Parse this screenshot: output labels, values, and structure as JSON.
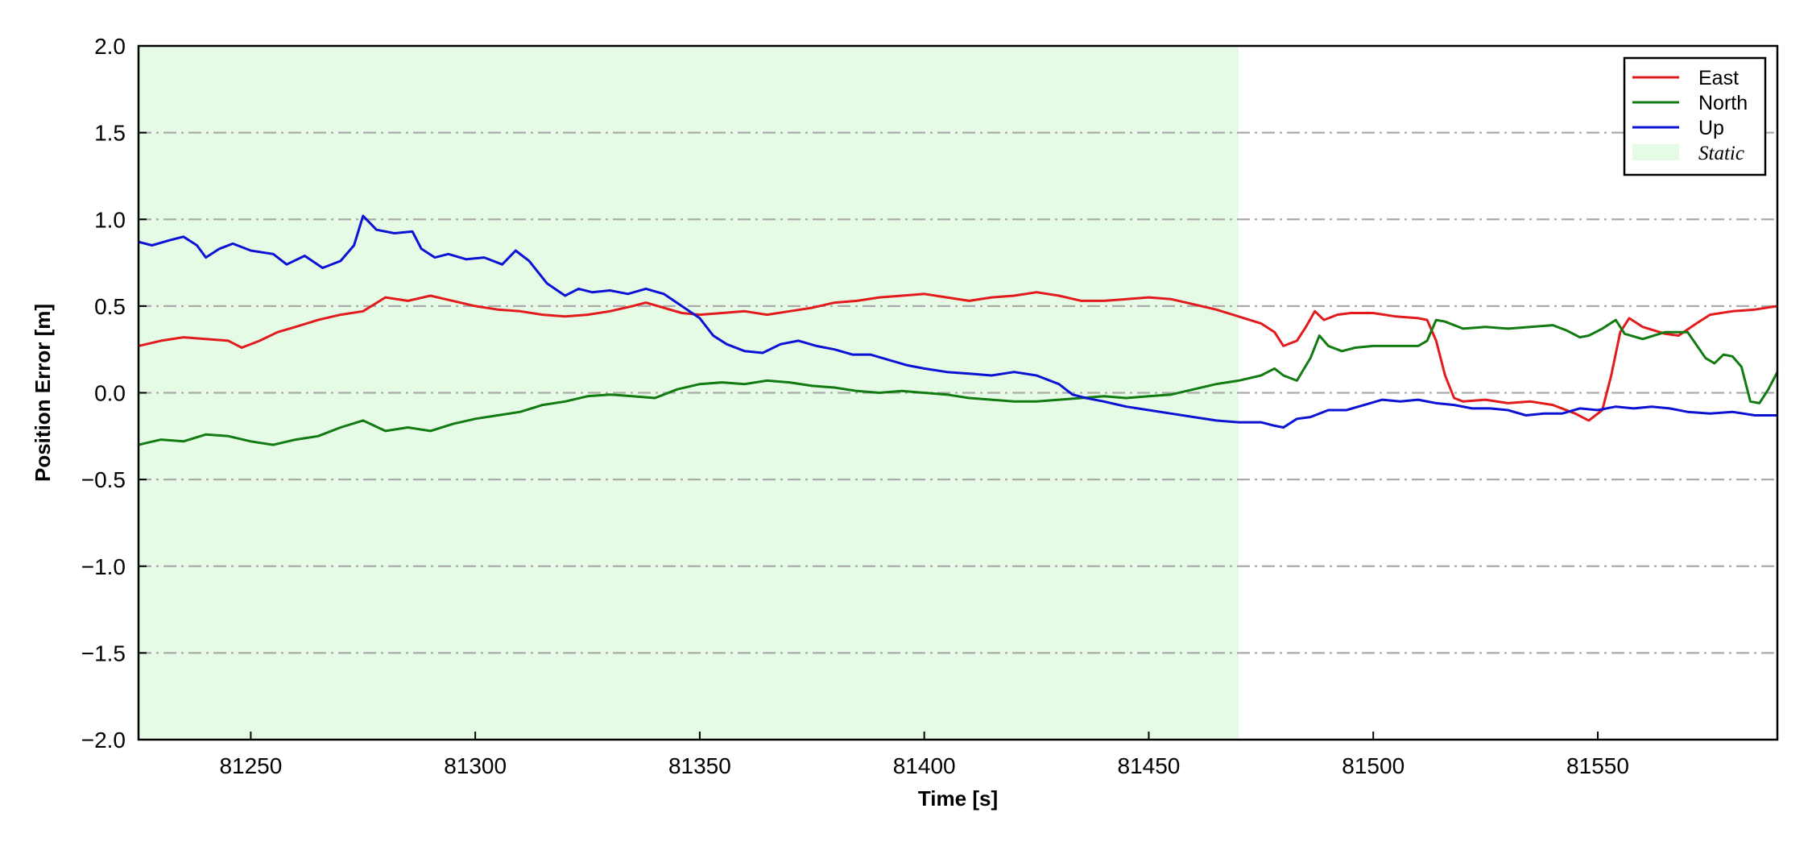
{
  "chart_data": {
    "type": "line",
    "xlabel": "Time [s]",
    "ylabel": "Position Error [m]",
    "xlim": [
      81225,
      81590
    ],
    "ylim": [
      -2.0,
      2.0
    ],
    "xticks": [
      81250,
      81300,
      81350,
      81400,
      81450,
      81500,
      81550
    ],
    "yticks": [
      -2.0,
      -1.5,
      -1.0,
      -0.5,
      0.0,
      0.5,
      1.0,
      1.5,
      2.0
    ],
    "ytick_labels": [
      "−2.0",
      "−1.5",
      "−1.0",
      "−0.5",
      "0.0",
      "0.5",
      "1.0",
      "1.5",
      "2.0"
    ],
    "grid": "horizontal dash-dot",
    "legend_position": "top-right",
    "shaded_region": {
      "label": "Static",
      "x_start": 81225,
      "x_end": 81470,
      "color": "#e6fbe6"
    },
    "series": [
      {
        "name": "East",
        "color": "#e31a1c",
        "points": [
          [
            81225,
            0.27
          ],
          [
            81230,
            0.3
          ],
          [
            81235,
            0.32
          ],
          [
            81240,
            0.31
          ],
          [
            81245,
            0.3
          ],
          [
            81248,
            0.26
          ],
          [
            81252,
            0.3
          ],
          [
            81256,
            0.35
          ],
          [
            81260,
            0.38
          ],
          [
            81265,
            0.42
          ],
          [
            81270,
            0.45
          ],
          [
            81275,
            0.47
          ],
          [
            81280,
            0.55
          ],
          [
            81285,
            0.53
          ],
          [
            81290,
            0.56
          ],
          [
            81295,
            0.53
          ],
          [
            81300,
            0.5
          ],
          [
            81305,
            0.48
          ],
          [
            81310,
            0.47
          ],
          [
            81315,
            0.45
          ],
          [
            81320,
            0.44
          ],
          [
            81325,
            0.45
          ],
          [
            81330,
            0.47
          ],
          [
            81335,
            0.5
          ],
          [
            81338,
            0.52
          ],
          [
            81342,
            0.49
          ],
          [
            81346,
            0.46
          ],
          [
            81350,
            0.45
          ],
          [
            81355,
            0.46
          ],
          [
            81360,
            0.47
          ],
          [
            81365,
            0.45
          ],
          [
            81370,
            0.47
          ],
          [
            81375,
            0.49
          ],
          [
            81380,
            0.52
          ],
          [
            81385,
            0.53
          ],
          [
            81390,
            0.55
          ],
          [
            81395,
            0.56
          ],
          [
            81400,
            0.57
          ],
          [
            81405,
            0.55
          ],
          [
            81410,
            0.53
          ],
          [
            81415,
            0.55
          ],
          [
            81420,
            0.56
          ],
          [
            81425,
            0.58
          ],
          [
            81430,
            0.56
          ],
          [
            81435,
            0.53
          ],
          [
            81440,
            0.53
          ],
          [
            81445,
            0.54
          ],
          [
            81450,
            0.55
          ],
          [
            81455,
            0.54
          ],
          [
            81460,
            0.51
          ],
          [
            81465,
            0.48
          ],
          [
            81470,
            0.44
          ],
          [
            81475,
            0.4
          ],
          [
            81478,
            0.35
          ],
          [
            81480,
            0.27
          ],
          [
            81483,
            0.3
          ],
          [
            81485,
            0.38
          ],
          [
            81487,
            0.47
          ],
          [
            81489,
            0.42
          ],
          [
            81492,
            0.45
          ],
          [
            81495,
            0.46
          ],
          [
            81500,
            0.46
          ],
          [
            81505,
            0.44
          ],
          [
            81510,
            0.43
          ],
          [
            81512,
            0.42
          ],
          [
            81514,
            0.3
          ],
          [
            81516,
            0.1
          ],
          [
            81518,
            -0.03
          ],
          [
            81520,
            -0.05
          ],
          [
            81525,
            -0.04
          ],
          [
            81530,
            -0.06
          ],
          [
            81535,
            -0.05
          ],
          [
            81540,
            -0.07
          ],
          [
            81545,
            -0.12
          ],
          [
            81548,
            -0.16
          ],
          [
            81551,
            -0.1
          ],
          [
            81553,
            0.1
          ],
          [
            81555,
            0.35
          ],
          [
            81557,
            0.43
          ],
          [
            81560,
            0.38
          ],
          [
            81565,
            0.34
          ],
          [
            81568,
            0.33
          ],
          [
            81572,
            0.4
          ],
          [
            81575,
            0.45
          ],
          [
            81580,
            0.47
          ],
          [
            81585,
            0.48
          ],
          [
            81590,
            0.5
          ]
        ]
      },
      {
        "name": "North",
        "color": "#117a11",
        "points": [
          [
            81225,
            -0.3
          ],
          [
            81230,
            -0.27
          ],
          [
            81235,
            -0.28
          ],
          [
            81240,
            -0.24
          ],
          [
            81245,
            -0.25
          ],
          [
            81250,
            -0.28
          ],
          [
            81255,
            -0.3
          ],
          [
            81260,
            -0.27
          ],
          [
            81265,
            -0.25
          ],
          [
            81270,
            -0.2
          ],
          [
            81275,
            -0.16
          ],
          [
            81280,
            -0.22
          ],
          [
            81285,
            -0.2
          ],
          [
            81290,
            -0.22
          ],
          [
            81295,
            -0.18
          ],
          [
            81300,
            -0.15
          ],
          [
            81305,
            -0.13
          ],
          [
            81310,
            -0.11
          ],
          [
            81315,
            -0.07
          ],
          [
            81320,
            -0.05
          ],
          [
            81325,
            -0.02
          ],
          [
            81330,
            -0.01
          ],
          [
            81335,
            -0.02
          ],
          [
            81340,
            -0.03
          ],
          [
            81345,
            0.02
          ],
          [
            81350,
            0.05
          ],
          [
            81355,
            0.06
          ],
          [
            81360,
            0.05
          ],
          [
            81365,
            0.07
          ],
          [
            81370,
            0.06
          ],
          [
            81375,
            0.04
          ],
          [
            81380,
            0.03
          ],
          [
            81385,
            0.01
          ],
          [
            81390,
            0.0
          ],
          [
            81395,
            0.01
          ],
          [
            81400,
            0.0
          ],
          [
            81405,
            -0.01
          ],
          [
            81410,
            -0.03
          ],
          [
            81415,
            -0.04
          ],
          [
            81420,
            -0.05
          ],
          [
            81425,
            -0.05
          ],
          [
            81430,
            -0.04
          ],
          [
            81435,
            -0.03
          ],
          [
            81440,
            -0.02
          ],
          [
            81445,
            -0.03
          ],
          [
            81450,
            -0.02
          ],
          [
            81455,
            -0.01
          ],
          [
            81460,
            0.02
          ],
          [
            81465,
            0.05
          ],
          [
            81470,
            0.07
          ],
          [
            81475,
            0.1
          ],
          [
            81478,
            0.14
          ],
          [
            81480,
            0.1
          ],
          [
            81483,
            0.07
          ],
          [
            81486,
            0.2
          ],
          [
            81488,
            0.33
          ],
          [
            81490,
            0.27
          ],
          [
            81493,
            0.24
          ],
          [
            81496,
            0.26
          ],
          [
            81500,
            0.27
          ],
          [
            81505,
            0.27
          ],
          [
            81510,
            0.27
          ],
          [
            81512,
            0.3
          ],
          [
            81514,
            0.42
          ],
          [
            81516,
            0.41
          ],
          [
            81520,
            0.37
          ],
          [
            81525,
            0.38
          ],
          [
            81530,
            0.37
          ],
          [
            81535,
            0.38
          ],
          [
            81540,
            0.39
          ],
          [
            81543,
            0.36
          ],
          [
            81546,
            0.32
          ],
          [
            81548,
            0.33
          ],
          [
            81551,
            0.37
          ],
          [
            81554,
            0.42
          ],
          [
            81556,
            0.34
          ],
          [
            81560,
            0.31
          ],
          [
            81565,
            0.35
          ],
          [
            81570,
            0.35
          ],
          [
            81574,
            0.2
          ],
          [
            81576,
            0.17
          ],
          [
            81578,
            0.22
          ],
          [
            81580,
            0.21
          ],
          [
            81582,
            0.15
          ],
          [
            81584,
            -0.05
          ],
          [
            81586,
            -0.06
          ],
          [
            81588,
            0.02
          ],
          [
            81590,
            0.12
          ]
        ]
      },
      {
        "name": "Up",
        "color": "#0c12d4",
        "points": [
          [
            81225,
            0.87
          ],
          [
            81228,
            0.85
          ],
          [
            81232,
            0.88
          ],
          [
            81235,
            0.9
          ],
          [
            81238,
            0.85
          ],
          [
            81240,
            0.78
          ],
          [
            81243,
            0.83
          ],
          [
            81246,
            0.86
          ],
          [
            81250,
            0.82
          ],
          [
            81255,
            0.8
          ],
          [
            81258,
            0.74
          ],
          [
            81262,
            0.79
          ],
          [
            81266,
            0.72
          ],
          [
            81270,
            0.76
          ],
          [
            81273,
            0.85
          ],
          [
            81275,
            1.02
          ],
          [
            81278,
            0.94
          ],
          [
            81282,
            0.92
          ],
          [
            81286,
            0.93
          ],
          [
            81288,
            0.83
          ],
          [
            81291,
            0.78
          ],
          [
            81294,
            0.8
          ],
          [
            81298,
            0.77
          ],
          [
            81302,
            0.78
          ],
          [
            81306,
            0.74
          ],
          [
            81309,
            0.82
          ],
          [
            81312,
            0.76
          ],
          [
            81316,
            0.63
          ],
          [
            81320,
            0.56
          ],
          [
            81323,
            0.6
          ],
          [
            81326,
            0.58
          ],
          [
            81330,
            0.59
          ],
          [
            81334,
            0.57
          ],
          [
            81338,
            0.6
          ],
          [
            81342,
            0.57
          ],
          [
            81346,
            0.5
          ],
          [
            81350,
            0.43
          ],
          [
            81353,
            0.33
          ],
          [
            81356,
            0.28
          ],
          [
            81360,
            0.24
          ],
          [
            81364,
            0.23
          ],
          [
            81368,
            0.28
          ],
          [
            81372,
            0.3
          ],
          [
            81376,
            0.27
          ],
          [
            81380,
            0.25
          ],
          [
            81384,
            0.22
          ],
          [
            81388,
            0.22
          ],
          [
            81392,
            0.19
          ],
          [
            81396,
            0.16
          ],
          [
            81400,
            0.14
          ],
          [
            81405,
            0.12
          ],
          [
            81410,
            0.11
          ],
          [
            81415,
            0.1
          ],
          [
            81420,
            0.12
          ],
          [
            81425,
            0.1
          ],
          [
            81430,
            0.05
          ],
          [
            81433,
            -0.01
          ],
          [
            81436,
            -0.03
          ],
          [
            81440,
            -0.05
          ],
          [
            81445,
            -0.08
          ],
          [
            81450,
            -0.1
          ],
          [
            81455,
            -0.12
          ],
          [
            81460,
            -0.14
          ],
          [
            81465,
            -0.16
          ],
          [
            81470,
            -0.17
          ],
          [
            81475,
            -0.17
          ],
          [
            81478,
            -0.19
          ],
          [
            81480,
            -0.2
          ],
          [
            81483,
            -0.15
          ],
          [
            81486,
            -0.14
          ],
          [
            81490,
            -0.1
          ],
          [
            81494,
            -0.1
          ],
          [
            81498,
            -0.07
          ],
          [
            81502,
            -0.04
          ],
          [
            81506,
            -0.05
          ],
          [
            81510,
            -0.04
          ],
          [
            81514,
            -0.06
          ],
          [
            81518,
            -0.07
          ],
          [
            81522,
            -0.09
          ],
          [
            81526,
            -0.09
          ],
          [
            81530,
            -0.1
          ],
          [
            81534,
            -0.13
          ],
          [
            81538,
            -0.12
          ],
          [
            81542,
            -0.12
          ],
          [
            81546,
            -0.09
          ],
          [
            81550,
            -0.1
          ],
          [
            81554,
            -0.08
          ],
          [
            81558,
            -0.09
          ],
          [
            81562,
            -0.08
          ],
          [
            81566,
            -0.09
          ],
          [
            81570,
            -0.11
          ],
          [
            81575,
            -0.12
          ],
          [
            81580,
            -0.11
          ],
          [
            81585,
            -0.13
          ],
          [
            81590,
            -0.13
          ]
        ]
      }
    ]
  }
}
